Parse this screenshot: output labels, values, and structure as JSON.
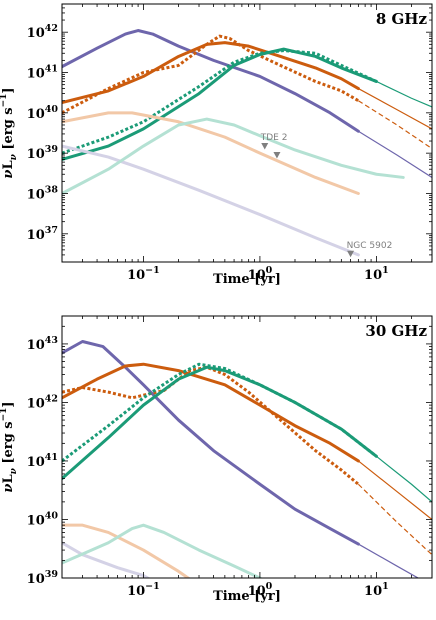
{
  "colors": {
    "purple": "#6e66ac",
    "orange": "#cc5c0e",
    "green": "#1b9b77",
    "light_purple": "#d4d2e6",
    "light_orange": "#f2c8a7",
    "light_green": "#b4e1d3",
    "marker": "#7f7f7f"
  },
  "chart_data": [
    {
      "type": "line",
      "panel_label": "8 GHz",
      "xlabel": "Time [yr]",
      "ylabel": "νL_ν [erg s⁻¹]",
      "xscale": "log",
      "yscale": "log",
      "xlim": [
        0.02,
        30
      ],
      "ylim": [
        2e+36,
        5e+42
      ],
      "x_ticks": [
        {
          "value": 0.1,
          "label": "10⁻¹"
        },
        {
          "value": 1,
          "label": "10⁰"
        },
        {
          "value": 10,
          "label": "10¹"
        }
      ],
      "y_ticks": [
        {
          "value": 1e+37,
          "label": "10³⁷"
        },
        {
          "value": 1e+38,
          "label": "10³⁸"
        },
        {
          "value": 1e+39,
          "label": "10³⁹"
        },
        {
          "value": 1e+40,
          "label": "10⁴⁰"
        },
        {
          "value": 1e+41,
          "label": "10⁴¹"
        },
        {
          "value": 1e+42,
          "label": "10⁴²"
        }
      ],
      "series": [
        {
          "color": "purple",
          "style": "solid",
          "width": 3,
          "points": [
            [
              0.02,
              1.4e+41
            ],
            [
              0.04,
              4e+41
            ],
            [
              0.07,
              9e+41
            ],
            [
              0.09,
              1.1e+42
            ],
            [
              0.12,
              9e+41
            ],
            [
              0.2,
              4.5e+41
            ],
            [
              0.4,
              2e+41
            ],
            [
              1,
              8e+40
            ],
            [
              2,
              3e+40
            ],
            [
              4,
              1e+40
            ],
            [
              7,
              3.5e+39
            ]
          ]
        },
        {
          "color": "purple",
          "style": "solid",
          "width": 1.2,
          "points": [
            [
              7,
              3.5e+39
            ],
            [
              15,
              9e+38
            ],
            [
              30,
              2.5e+38
            ]
          ]
        },
        {
          "color": "orange",
          "style": "solid",
          "width": 3,
          "points": [
            [
              0.02,
              1.8e+40
            ],
            [
              0.05,
              3.5e+40
            ],
            [
              0.1,
              8e+40
            ],
            [
              0.2,
              2.5e+41
            ],
            [
              0.35,
              5e+41
            ],
            [
              0.5,
              5.5e+41
            ],
            [
              0.8,
              4.5e+41
            ],
            [
              1.5,
              2.5e+41
            ],
            [
              3,
              1.3e+41
            ],
            [
              5,
              7e+40
            ],
            [
              7,
              4e+40
            ]
          ]
        },
        {
          "color": "orange",
          "style": "solid",
          "width": 1.2,
          "points": [
            [
              7,
              4e+40
            ],
            [
              15,
              1.2e+40
            ],
            [
              30,
              4e+39
            ]
          ]
        },
        {
          "color": "orange",
          "style": "dotted",
          "width": 3,
          "points": [
            [
              0.02,
              1e+40
            ],
            [
              0.05,
              4e+40
            ],
            [
              0.1,
              1e+41
            ],
            [
              0.2,
              1.5e+41
            ],
            [
              0.35,
              5e+41
            ],
            [
              0.45,
              8e+41
            ],
            [
              0.55,
              7e+41
            ],
            [
              0.8,
              3.5e+41
            ],
            [
              1.5,
              1.5e+41
            ],
            [
              3,
              6e+40
            ],
            [
              5,
              3.5e+40
            ],
            [
              7,
              2e+40
            ]
          ]
        },
        {
          "color": "orange",
          "style": "dashed",
          "width": 1.2,
          "points": [
            [
              7,
              2e+40
            ],
            [
              15,
              5e+39
            ],
            [
              30,
              1.3e+39
            ]
          ]
        },
        {
          "color": "green",
          "style": "solid",
          "width": 3,
          "points": [
            [
              0.02,
              7e+38
            ],
            [
              0.05,
              1.5e+39
            ],
            [
              0.1,
              4e+39
            ],
            [
              0.3,
              3e+40
            ],
            [
              0.6,
              1.5e+41
            ],
            [
              1,
              2.8e+41
            ],
            [
              1.6,
              3.8e+41
            ],
            [
              3,
              2.5e+41
            ],
            [
              5,
              1.3e+41
            ],
            [
              10,
              6e+40
            ]
          ]
        },
        {
          "color": "green",
          "style": "solid",
          "width": 1.2,
          "points": [
            [
              10,
              6e+40
            ],
            [
              20,
              2.3e+40
            ],
            [
              30,
              1.4e+40
            ]
          ]
        },
        {
          "color": "green",
          "style": "dotted",
          "width": 3,
          "points": [
            [
              0.02,
              1e+39
            ],
            [
              0.05,
              2.5e+39
            ],
            [
              0.1,
              6e+39
            ],
            [
              0.3,
              4.5e+40
            ],
            [
              0.6,
              1.8e+41
            ],
            [
              1,
              3e+41
            ],
            [
              1.6,
              3.5e+41
            ],
            [
              3,
              3e+41
            ],
            [
              5,
              1.5e+41
            ],
            [
              10,
              6e+40
            ]
          ]
        },
        {
          "color": "light_purple",
          "style": "solid",
          "width": 3,
          "points": [
            [
              0.02,
              1.5e+39
            ],
            [
              0.05,
              8e+38
            ],
            [
              0.1,
              4e+38
            ],
            [
              0.3,
              1.2e+38
            ],
            [
              1,
              3e+37
            ],
            [
              3,
              8e+36
            ],
            [
              7,
              3e+36
            ]
          ]
        },
        {
          "color": "light_orange",
          "style": "solid",
          "width": 3,
          "points": [
            [
              0.02,
              6e+39
            ],
            [
              0.05,
              1e+40
            ],
            [
              0.08,
              1e+40
            ],
            [
              0.2,
              6e+39
            ],
            [
              0.5,
              2.5e+39
            ],
            [
              1,
              1e+39
            ],
            [
              3,
              2.5e+38
            ],
            [
              7,
              1e+38
            ]
          ]
        },
        {
          "color": "light_green",
          "style": "solid",
          "width": 3,
          "points": [
            [
              0.02,
              1e+38
            ],
            [
              0.05,
              4e+38
            ],
            [
              0.1,
              1.5e+39
            ],
            [
              0.2,
              5e+39
            ],
            [
              0.35,
              7e+39
            ],
            [
              0.6,
              5e+39
            ],
            [
              1,
              2.7e+39
            ],
            [
              2,
              1.2e+39
            ],
            [
              5,
              5e+38
            ],
            [
              10,
              3e+38
            ],
            [
              17,
              2.5e+38
            ]
          ]
        }
      ],
      "markers": [
        {
          "x": 1.1,
          "y": 1.5e+39,
          "label": "TDE 2"
        },
        {
          "x": 1.4,
          "y": 9e+38,
          "label": ""
        },
        {
          "x": 6.0,
          "y": 3.2e+36,
          "label": "NGC 5902"
        }
      ]
    },
    {
      "type": "line",
      "panel_label": "30 GHz",
      "xlabel": "Time [yr]",
      "ylabel": "νL_ν [erg s⁻¹]",
      "xscale": "log",
      "yscale": "log",
      "xlim": [
        0.02,
        30
      ],
      "ylim": [
        1e+39,
        3e+43
      ],
      "x_ticks": [
        {
          "value": 0.1,
          "label": "10⁻¹"
        },
        {
          "value": 1,
          "label": "10⁰"
        },
        {
          "value": 10,
          "label": "10¹"
        }
      ],
      "y_ticks": [
        {
          "value": 1e+39,
          "label": "10³⁹"
        },
        {
          "value": 1e+40,
          "label": "10⁴⁰"
        },
        {
          "value": 1e+41,
          "label": "10⁴¹"
        },
        {
          "value": 1e+42,
          "label": "10⁴²"
        },
        {
          "value": 1e+43,
          "label": "10⁴³"
        }
      ],
      "series": [
        {
          "color": "purple",
          "style": "solid",
          "width": 3,
          "points": [
            [
              0.02,
              7e+42
            ],
            [
              0.03,
              1.1e+43
            ],
            [
              0.045,
              9e+42
            ],
            [
              0.07,
              4e+42
            ],
            [
              0.1,
              2e+42
            ],
            [
              0.2,
              5e+41
            ],
            [
              0.4,
              1.5e+41
            ],
            [
              1,
              4e+40
            ],
            [
              2,
              1.5e+40
            ],
            [
              4,
              7e+39
            ],
            [
              7,
              3.8e+39
            ]
          ]
        },
        {
          "color": "purple",
          "style": "solid",
          "width": 1.2,
          "points": [
            [
              7,
              3.8e+39
            ],
            [
              15,
              1.6e+39
            ],
            [
              25,
              9e+38
            ]
          ]
        },
        {
          "color": "orange",
          "style": "solid",
          "width": 3,
          "points": [
            [
              0.02,
              1.2e+42
            ],
            [
              0.04,
              2.5e+42
            ],
            [
              0.07,
              4.2e+42
            ],
            [
              0.1,
              4.5e+42
            ],
            [
              0.2,
              3.5e+42
            ],
            [
              0.5,
              2e+42
            ],
            [
              1,
              9e+41
            ],
            [
              2,
              4e+41
            ],
            [
              4,
              2e+41
            ],
            [
              7,
              1e+41
            ]
          ]
        },
        {
          "color": "orange",
          "style": "solid",
          "width": 1.2,
          "points": [
            [
              7,
              1e+41
            ],
            [
              15,
              3e+40
            ],
            [
              30,
              1e+40
            ]
          ]
        },
        {
          "color": "orange",
          "style": "dotted",
          "width": 3,
          "points": [
            [
              0.02,
              1.5e+42
            ],
            [
              0.03,
              1.8e+42
            ],
            [
              0.05,
              1.5e+42
            ],
            [
              0.08,
              1.2e+42
            ],
            [
              0.15,
              1.6e+42
            ],
            [
              0.25,
              3.5e+42
            ],
            [
              0.35,
              4e+42
            ],
            [
              0.5,
              3e+42
            ],
            [
              0.8,
              1.5e+42
            ],
            [
              1.5,
              5e+41
            ],
            [
              3,
              1.5e+41
            ],
            [
              5,
              7e+40
            ],
            [
              7,
              4e+40
            ]
          ]
        },
        {
          "color": "orange",
          "style": "dashed",
          "width": 1.2,
          "points": [
            [
              7,
              4e+40
            ],
            [
              15,
              9e+39
            ],
            [
              30,
              2.5e+39
            ]
          ]
        },
        {
          "color": "green",
          "style": "solid",
          "width": 3,
          "points": [
            [
              0.02,
              5e+40
            ],
            [
              0.05,
              2.5e+41
            ],
            [
              0.1,
              9e+41
            ],
            [
              0.2,
              2.5e+42
            ],
            [
              0.35,
              4e+42
            ],
            [
              0.5,
              3.5e+42
            ],
            [
              1,
              2e+42
            ],
            [
              2,
              1e+42
            ],
            [
              5,
              3.5e+41
            ],
            [
              10,
              1.2e+41
            ]
          ]
        },
        {
          "color": "green",
          "style": "solid",
          "width": 1.2,
          "points": [
            [
              10,
              1.2e+41
            ],
            [
              20,
              4e+40
            ],
            [
              30,
              2e+40
            ]
          ]
        },
        {
          "color": "green",
          "style": "dotted",
          "width": 3,
          "points": [
            [
              0.02,
              1e+41
            ],
            [
              0.05,
              4e+41
            ],
            [
              0.1,
              1.2e+42
            ],
            [
              0.2,
              3e+42
            ],
            [
              0.3,
              4.5e+42
            ],
            [
              0.5,
              3.8e+42
            ],
            [
              1,
              2e+42
            ],
            [
              2,
              1e+42
            ],
            [
              5,
              3.5e+41
            ],
            [
              10,
              1.2e+41
            ]
          ]
        },
        {
          "color": "light_purple",
          "style": "solid",
          "width": 3,
          "points": [
            [
              0.02,
              4e+39
            ],
            [
              0.03,
              2.5e+39
            ],
            [
              0.06,
              1.5e+39
            ],
            [
              0.1,
              1.1e+39
            ],
            [
              0.2,
              5e+38
            ]
          ]
        },
        {
          "color": "light_orange",
          "style": "solid",
          "width": 3,
          "points": [
            [
              0.02,
              8e+39
            ],
            [
              0.03,
              8e+39
            ],
            [
              0.05,
              6e+39
            ],
            [
              0.1,
              3e+39
            ],
            [
              0.2,
              1.3e+39
            ],
            [
              0.4,
              5e+38
            ]
          ]
        },
        {
          "color": "light_green",
          "style": "solid",
          "width": 3,
          "points": [
            [
              0.02,
              1.8e+39
            ],
            [
              0.05,
              4e+39
            ],
            [
              0.08,
              7e+39
            ],
            [
              0.1,
              8e+39
            ],
            [
              0.15,
              6e+39
            ],
            [
              0.3,
              3e+39
            ],
            [
              0.6,
              1.6e+39
            ],
            [
              1,
              1e+39
            ],
            [
              1.5,
              6e+38
            ]
          ]
        }
      ],
      "markers": []
    }
  ]
}
